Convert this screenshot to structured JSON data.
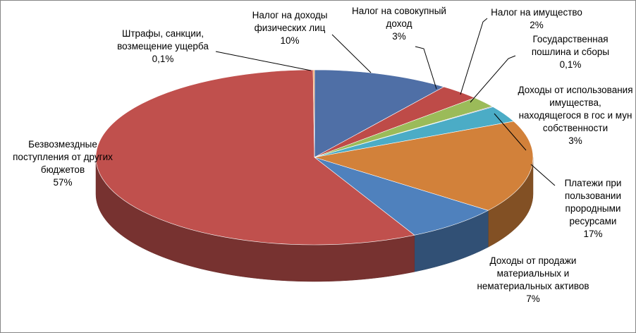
{
  "chart_data": {
    "type": "pie",
    "categories": [
      "Налог на доходы физических лиц",
      "Налог на совокупный доход",
      "Налог на имущество",
      "Государственная пошлина и сборы",
      "Доходы от использования имущества, находящегося в гос и мун собственности",
      "Платежи при пользовании прородными ресурсами",
      "Доходы от продажи материальных и нематериальных активов",
      "Безвозмездные поступления от других бюджетов",
      "Штрафы, санкции, возмещение ущерба"
    ],
    "values": [
      10,
      3,
      2,
      0.1,
      3,
      17,
      7,
      57,
      0.1
    ],
    "value_labels": [
      "10%",
      "3%",
      "2%",
      "0,1%",
      "3%",
      "17%",
      "7%",
      "57%",
      "0,1%"
    ],
    "colors": [
      "#4f6fa6",
      "#be4b48",
      "#9bbb59",
      "#7f60a0",
      "#4bacc6",
      "#d2813a",
      "#4f81bd",
      "#c0504d",
      "#f79646"
    ]
  }
}
